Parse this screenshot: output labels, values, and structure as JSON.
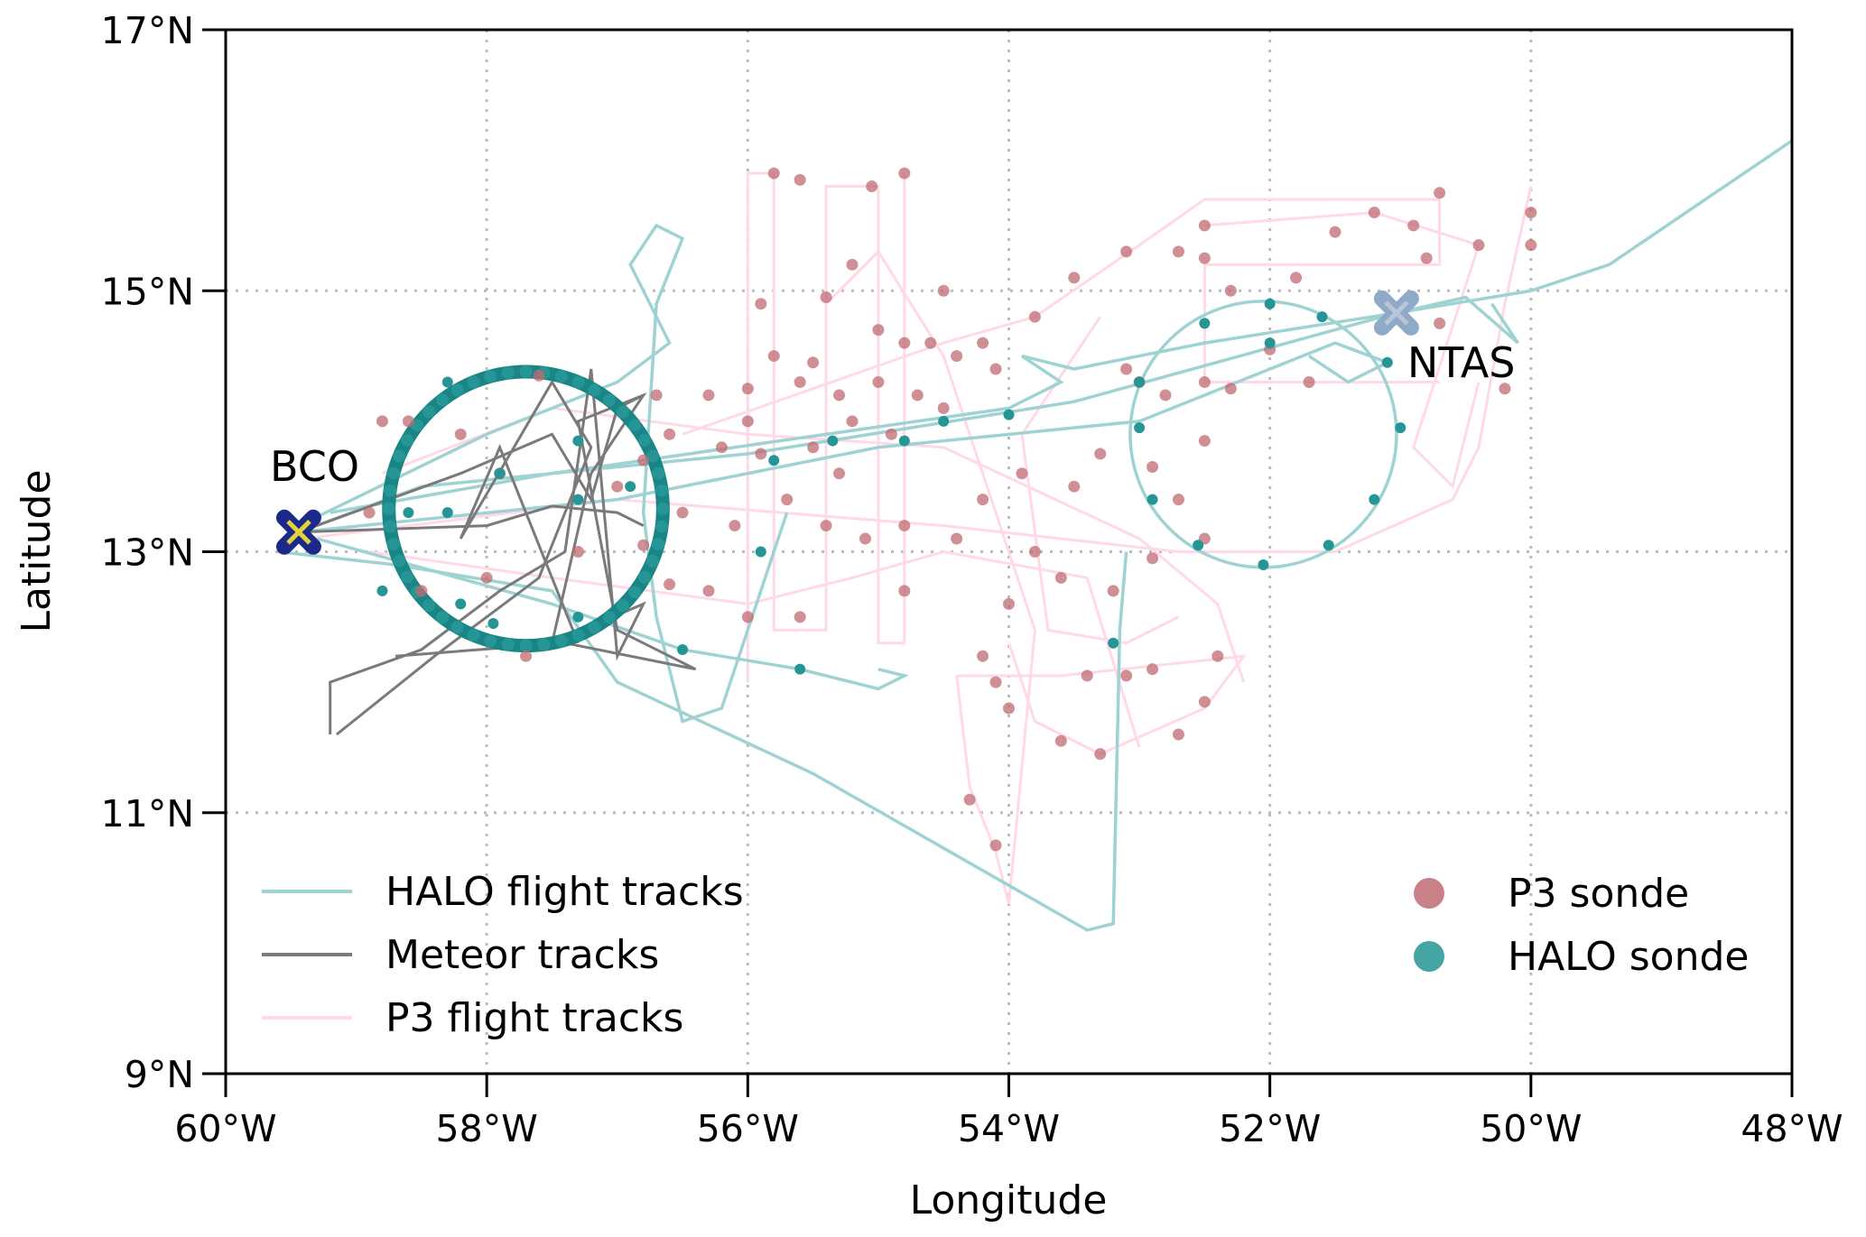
{
  "chart_data": {
    "type": "scatter",
    "title": "",
    "xlabel": "Longitude",
    "ylabel": "Latitude",
    "xlim": [
      -60,
      -48
    ],
    "ylim": [
      9,
      17
    ],
    "grid": true,
    "x_ticks": [
      -60,
      -58,
      -56,
      -54,
      -52,
      -50,
      -48
    ],
    "x_tick_labels": [
      "60°W",
      "58°W",
      "56°W",
      "54°W",
      "52°W",
      "50°W",
      "48°W"
    ],
    "y_ticks": [
      9,
      11,
      13,
      15,
      17
    ],
    "y_tick_labels": [
      "9°N",
      "11°N",
      "13°N",
      "15°N",
      "17°N"
    ],
    "colors": {
      "halo_track": "#9fd3d3",
      "meteor_track": "#7a7a7a",
      "p3_track": "#ffd9e7",
      "p3_sonde": "#c06a72",
      "halo_sonde": "#259595",
      "halo_circle": "#1a8585"
    },
    "annotations": [
      {
        "label": "BCO",
        "lon": -59.44,
        "lat": 13.15
      },
      {
        "label": "NTAS",
        "lon": -51.03,
        "lat": 14.83
      }
    ],
    "legend_left": [
      "HALO flight tracks",
      "Meteor tracks",
      "P3 flight tracks"
    ],
    "legend_right": [
      "P3 sonde",
      "HALO sonde"
    ],
    "halo_circle": {
      "lon": -57.7,
      "lat": 13.33,
      "radius_deg": 1.05
    },
    "halo_circle_east": {
      "lon": -52.05,
      "lat": 13.9,
      "radius_deg": 1.02
    },
    "halo_tracks": [
      [
        [
          -59.44,
          13.15
        ],
        [
          -58.5,
          13.5
        ],
        [
          -56.0,
          13.75
        ],
        [
          -53.5,
          14.15
        ],
        [
          -51.03,
          14.83
        ],
        [
          -50.0,
          15.0
        ],
        [
          -49.4,
          15.2
        ],
        [
          -48.0,
          16.15
        ]
      ],
      [
        [
          -59.6,
          13.0
        ],
        [
          -58.7,
          12.9
        ],
        [
          -57.5,
          12.7
        ],
        [
          -57.0,
          12.0
        ],
        [
          -55.5,
          11.3
        ],
        [
          -53.4,
          10.1
        ],
        [
          -53.2,
          10.15
        ],
        [
          -53.15,
          12.4
        ],
        [
          -53.1,
          13.0
        ]
      ],
      [
        [
          -59.44,
          13.2
        ],
        [
          -58.0,
          13.9
        ],
        [
          -57.0,
          14.3
        ],
        [
          -56.6,
          14.6
        ],
        [
          -56.9,
          15.2
        ],
        [
          -56.7,
          15.5
        ],
        [
          -56.5,
          15.4
        ],
        [
          -56.7,
          14.9
        ],
        [
          -56.8,
          13.3
        ],
        [
          -56.7,
          12.5
        ],
        [
          -56.5,
          11.7
        ],
        [
          -56.2,
          11.8
        ],
        [
          -55.7,
          13.3
        ]
      ],
      [
        [
          -59.3,
          13.1
        ],
        [
          -57.5,
          12.6
        ],
        [
          -56.5,
          12.25
        ],
        [
          -55.6,
          12.1
        ],
        [
          -55.0,
          11.95
        ],
        [
          -54.8,
          12.05
        ],
        [
          -55.0,
          12.1
        ]
      ],
      [
        [
          -59.44,
          13.15
        ],
        [
          -57.0,
          13.4
        ],
        [
          -55.0,
          13.8
        ],
        [
          -53.0,
          14.0
        ],
        [
          -51.5,
          14.6
        ],
        [
          -51.1,
          14.45
        ],
        [
          -51.4,
          14.3
        ],
        [
          -51.7,
          14.5
        ]
      ],
      [
        [
          -59.2,
          13.3
        ],
        [
          -57.5,
          13.6
        ],
        [
          -54.0,
          14.1
        ],
        [
          -53.6,
          14.3
        ],
        [
          -53.9,
          14.5
        ],
        [
          -53.5,
          14.4
        ],
        [
          -52.5,
          14.6
        ],
        [
          -51.03,
          14.83
        ],
        [
          -50.5,
          14.95
        ],
        [
          -50.1,
          14.6
        ],
        [
          -50.3,
          14.9
        ]
      ]
    ],
    "meteor_tracks": [
      [
        [
          -59.44,
          13.15
        ],
        [
          -58.0,
          13.2
        ],
        [
          -57.5,
          13.35
        ],
        [
          -57.0,
          13.3
        ],
        [
          -56.8,
          13.2
        ]
      ],
      [
        [
          -59.2,
          11.6
        ],
        [
          -59.2,
          12.0
        ],
        [
          -58.5,
          12.25
        ],
        [
          -57.9,
          12.7
        ],
        [
          -57.4,
          13.0
        ],
        [
          -57.2,
          14.4
        ],
        [
          -57.0,
          12.2
        ],
        [
          -56.8,
          12.6
        ],
        [
          -57.5,
          12.3
        ],
        [
          -57.2,
          13.6
        ],
        [
          -56.8,
          14.2
        ],
        [
          -57.3,
          14.0
        ],
        [
          -57.0,
          12.4
        ],
        [
          -56.4,
          12.1
        ],
        [
          -57.4,
          12.3
        ],
        [
          -58.7,
          12.2
        ]
      ],
      [
        [
          -59.15,
          11.6
        ],
        [
          -58.4,
          12.2
        ],
        [
          -57.6,
          12.8
        ],
        [
          -57.2,
          13.8
        ],
        [
          -57.5,
          14.3
        ],
        [
          -58.2,
          13.1
        ],
        [
          -57.9,
          13.8
        ],
        [
          -57.3,
          12.3
        ]
      ],
      [
        [
          -59.44,
          13.15
        ],
        [
          -58.2,
          13.6
        ],
        [
          -57.5,
          13.9
        ],
        [
          -57.2,
          13.4
        ],
        [
          -57.0,
          14.1
        ],
        [
          -56.8,
          14.2
        ]
      ]
    ],
    "p3_tracks": [
      [
        [
          -56.0,
          12.0
        ],
        [
          -56.0,
          15.9
        ],
        [
          -55.8,
          15.9
        ],
        [
          -55.8,
          12.4
        ],
        [
          -55.4,
          12.4
        ],
        [
          -55.4,
          15.8
        ],
        [
          -55.0,
          15.8
        ],
        [
          -55.0,
          12.3
        ],
        [
          -54.8,
          12.3
        ],
        [
          -54.8,
          15.9
        ]
      ],
      [
        [
          -56.5,
          13.9
        ],
        [
          -54.5,
          14.6
        ],
        [
          -53.8,
          14.8
        ],
        [
          -53.0,
          15.35
        ],
        [
          -52.5,
          15.7
        ],
        [
          -50.7,
          15.7
        ],
        [
          -50.7,
          15.2
        ],
        [
          -52.5,
          15.2
        ],
        [
          -52.5,
          14.3
        ],
        [
          -50.7,
          14.3
        ]
      ],
      [
        [
          -59.4,
          13.1
        ],
        [
          -57.0,
          13.4
        ],
        [
          -54.5,
          13.2
        ],
        [
          -52.7,
          13.0
        ],
        [
          -51.5,
          13.0
        ],
        [
          -50.6,
          13.4
        ],
        [
          -50.4,
          13.8
        ],
        [
          -50.2,
          14.9
        ],
        [
          -50.0,
          15.8
        ]
      ],
      [
        [
          -54.4,
          12.05
        ],
        [
          -53.6,
          12.05
        ],
        [
          -52.2,
          12.2
        ],
        [
          -52.5,
          11.8
        ],
        [
          -53.3,
          11.45
        ],
        [
          -53.8,
          11.7
        ],
        [
          -54.0,
          12.3
        ]
      ],
      [
        [
          -54.4,
          12.05
        ],
        [
          -54.3,
          11.2
        ],
        [
          -54.1,
          10.7
        ],
        [
          -54.0,
          10.3
        ],
        [
          -53.8,
          12.4
        ],
        [
          -54.5,
          14.5
        ],
        [
          -55.0,
          15.3
        ],
        [
          -55.4,
          14.9
        ]
      ],
      [
        [
          -58.8,
          13.6
        ],
        [
          -57.5,
          14.1
        ],
        [
          -56.0,
          13.9
        ],
        [
          -54.5,
          13.8
        ],
        [
          -53.0,
          13.1
        ],
        [
          -52.4,
          12.6
        ],
        [
          -52.2,
          12.0
        ]
      ],
      [
        [
          -58.9,
          13.0
        ],
        [
          -57.5,
          12.8
        ],
        [
          -56.0,
          12.6
        ],
        [
          -55.2,
          12.8
        ],
        [
          -54.5,
          13.0
        ],
        [
          -53.4,
          12.8
        ],
        [
          -53.0,
          11.5
        ]
      ],
      [
        [
          -52.5,
          15.5
        ],
        [
          -51.2,
          15.6
        ],
        [
          -50.4,
          15.35
        ],
        [
          -50.9,
          13.8
        ],
        [
          -50.6,
          13.5
        ],
        [
          -50.4,
          14.3
        ]
      ],
      [
        [
          -53.3,
          14.8
        ],
        [
          -53.9,
          13.9
        ],
        [
          -53.7,
          12.4
        ],
        [
          -53.1,
          12.3
        ],
        [
          -52.7,
          12.5
        ]
      ]
    ],
    "p3_sondes": [
      [
        -55.8,
        15.9
      ],
      [
        -55.6,
        15.85
      ],
      [
        -55.05,
        15.8
      ],
      [
        -54.8,
        15.9
      ],
      [
        -54.5,
        15.0
      ],
      [
        -55.2,
        15.2
      ],
      [
        -55.9,
        14.9
      ],
      [
        -55.4,
        14.95
      ],
      [
        -54.6,
        14.6
      ],
      [
        -55.0,
        14.7
      ],
      [
        -54.8,
        14.6
      ],
      [
        -54.4,
        14.5
      ],
      [
        -54.2,
        14.6
      ],
      [
        -54.1,
        14.4
      ],
      [
        -55.5,
        14.45
      ],
      [
        -55.8,
        14.5
      ],
      [
        -56.0,
        14.25
      ],
      [
        -56.3,
        14.2
      ],
      [
        -55.6,
        14.3
      ],
      [
        -55.3,
        14.2
      ],
      [
        -55.0,
        14.3
      ],
      [
        -54.7,
        14.2
      ],
      [
        -54.5,
        14.1
      ],
      [
        -55.2,
        14.0
      ],
      [
        -54.9,
        13.9
      ],
      [
        -55.5,
        13.8
      ],
      [
        -55.9,
        13.75
      ],
      [
        -56.2,
        13.8
      ],
      [
        -56.6,
        13.9
      ],
      [
        -56.8,
        13.7
      ],
      [
        -57.0,
        13.5
      ],
      [
        -56.5,
        13.3
      ],
      [
        -56.1,
        13.2
      ],
      [
        -55.7,
        13.4
      ],
      [
        -55.4,
        13.2
      ],
      [
        -55.1,
        13.1
      ],
      [
        -54.8,
        13.2
      ],
      [
        -54.4,
        13.1
      ],
      [
        -54.2,
        13.4
      ],
      [
        -53.9,
        13.6
      ],
      [
        -53.8,
        13.0
      ],
      [
        -53.6,
        12.8
      ],
      [
        -54.0,
        12.6
      ],
      [
        -54.2,
        12.2
      ],
      [
        -54.1,
        12.0
      ],
      [
        -54.0,
        11.8
      ],
      [
        -53.6,
        11.55
      ],
      [
        -53.3,
        11.45
      ],
      [
        -52.7,
        11.6
      ],
      [
        -52.5,
        11.85
      ],
      [
        -52.9,
        12.1
      ],
      [
        -53.1,
        12.05
      ],
      [
        -53.4,
        12.05
      ],
      [
        -52.4,
        12.2
      ],
      [
        -53.2,
        12.7
      ],
      [
        -52.9,
        12.95
      ],
      [
        -52.5,
        13.1
      ],
      [
        -52.7,
        13.4
      ],
      [
        -52.9,
        13.65
      ],
      [
        -53.3,
        13.75
      ],
      [
        -53.5,
        13.5
      ],
      [
        -53.1,
        14.4
      ],
      [
        -53.0,
        14.3
      ],
      [
        -52.8,
        14.2
      ],
      [
        -52.5,
        14.3
      ],
      [
        -52.0,
        14.55
      ],
      [
        -51.7,
        14.3
      ],
      [
        -52.3,
        14.25
      ],
      [
        -52.5,
        13.85
      ],
      [
        -52.5,
        15.5
      ],
      [
        -52.5,
        15.25
      ],
      [
        -52.3,
        15.0
      ],
      [
        -51.8,
        15.1
      ],
      [
        -51.5,
        15.45
      ],
      [
        -51.2,
        15.6
      ],
      [
        -50.9,
        15.5
      ],
      [
        -50.7,
        15.75
      ],
      [
        -50.8,
        15.25
      ],
      [
        -50.4,
        15.35
      ],
      [
        -50.0,
        15.6
      ],
      [
        -50.0,
        15.35
      ],
      [
        -50.7,
        14.75
      ],
      [
        -50.2,
        14.25
      ],
      [
        -52.7,
        15.3
      ],
      [
        -53.1,
        15.3
      ],
      [
        -53.5,
        15.1
      ],
      [
        -53.8,
        14.8
      ],
      [
        -54.3,
        11.1
      ],
      [
        -54.1,
        10.75
      ],
      [
        -57.9,
        13.6
      ],
      [
        -58.2,
        13.9
      ],
      [
        -58.6,
        14.0
      ],
      [
        -58.9,
        13.3
      ],
      [
        -58.5,
        12.7
      ],
      [
        -58.0,
        12.8
      ],
      [
        -56.6,
        12.75
      ],
      [
        -56.3,
        12.7
      ],
      [
        -56.0,
        12.5
      ],
      [
        -55.6,
        12.5
      ],
      [
        -54.8,
        12.7
      ],
      [
        -57.3,
        13.0
      ],
      [
        -57.7,
        12.2
      ],
      [
        -56.8,
        13.05
      ],
      [
        -56.0,
        14.0
      ],
      [
        -55.3,
        13.6
      ],
      [
        -58.8,
        14.0
      ],
      [
        -57.6,
        14.35
      ],
      [
        -56.7,
        14.2
      ]
    ],
    "halo_sondes": [
      [
        -53.0,
        13.95
      ],
      [
        -53.2,
        12.3
      ],
      [
        -55.6,
        12.1
      ],
      [
        -56.5,
        12.25
      ],
      [
        -55.9,
        13.0
      ],
      [
        -54.5,
        14.0
      ],
      [
        -54.0,
        14.05
      ],
      [
        -54.8,
        13.85
      ],
      [
        -55.35,
        13.85
      ],
      [
        -55.8,
        13.7
      ],
      [
        -56.9,
        13.5
      ],
      [
        -57.3,
        13.4
      ],
      [
        -57.3,
        13.85
      ],
      [
        -57.9,
        13.6
      ],
      [
        -58.2,
        12.6
      ],
      [
        -58.8,
        12.7
      ],
      [
        -58.3,
        13.3
      ],
      [
        -58.6,
        13.3
      ],
      [
        -51.1,
        14.45
      ],
      [
        -53.0,
        14.3
      ],
      [
        -52.0,
        14.6
      ],
      [
        -51.6,
        14.8
      ],
      [
        -52.5,
        14.75
      ],
      [
        -52.0,
        14.9
      ],
      [
        -51.0,
        13.95
      ],
      [
        -51.2,
        13.4
      ],
      [
        -51.55,
        13.05
      ],
      [
        -52.05,
        12.9
      ],
      [
        -52.55,
        13.05
      ],
      [
        -52.9,
        13.4
      ],
      [
        -58.3,
        14.3
      ],
      [
        -57.95,
        12.45
      ],
      [
        -57.3,
        12.5
      ]
    ]
  }
}
